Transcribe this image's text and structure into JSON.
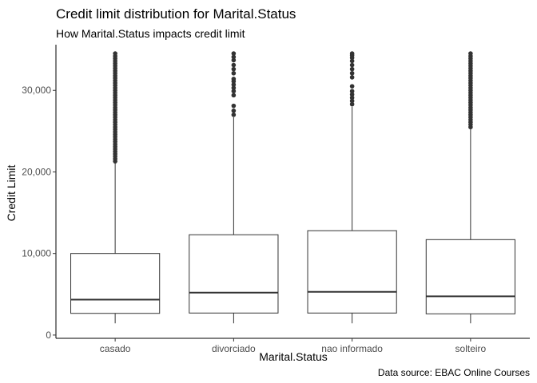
{
  "chart_data": {
    "type": "boxplot",
    "title": "Credit limit distribution for Marital.Status",
    "subtitle": "How Marital.Status impacts credit limit",
    "xlabel": "Marital.Status",
    "ylabel": "Credit Limit",
    "caption": "Data source: EBAC Online Courses",
    "ylim": [
      -400,
      35600
    ],
    "yticks": [
      0,
      10000,
      20000,
      30000
    ],
    "ytick_labels": [
      "0",
      "10,000",
      "20,000",
      "30,000"
    ],
    "grid": false,
    "legend": "none",
    "categories": [
      "casado",
      "divorciado",
      "nao informado",
      "solteiro"
    ],
    "boxes": [
      {
        "category": "casado",
        "min": 1438,
        "q1": 2660,
        "median": 4350,
        "q3": 10000,
        "whisker_high": 21100,
        "outliers": [
          21300,
          21600,
          21900,
          22200,
          22500,
          22800,
          23100,
          23400,
          23700,
          24000,
          24300,
          24600,
          24900,
          25200,
          25500,
          25800,
          26100,
          26400,
          26700,
          27000,
          27300,
          27600,
          27900,
          28200,
          28500,
          28800,
          29100,
          29400,
          29700,
          30000,
          30300,
          30600,
          30900,
          31200,
          31500,
          31800,
          32100,
          32400,
          32700,
          33000,
          33300,
          33600,
          33900,
          34200,
          34516
        ]
      },
      {
        "category": "divorciado",
        "min": 1438,
        "q1": 2700,
        "median": 5200,
        "q3": 12300,
        "whisker_high": 26700,
        "outliers": [
          27000,
          27500,
          28100,
          29400,
          29900,
          30300,
          30700,
          31100,
          31400,
          32100,
          32600,
          33100,
          33700,
          34100,
          34516
        ]
      },
      {
        "category": "nao informado",
        "min": 1438,
        "q1": 2700,
        "median": 5300,
        "q3": 12800,
        "whisker_high": 28000,
        "outliers": [
          28300,
          28700,
          29100,
          29500,
          29900,
          30500,
          31600,
          32100,
          32600,
          33100,
          33600,
          34000,
          34300,
          34516
        ]
      },
      {
        "category": "solteiro",
        "min": 1438,
        "q1": 2600,
        "median": 4750,
        "q3": 11700,
        "whisker_high": 25300,
        "outliers": [
          25500,
          25800,
          26100,
          26400,
          26700,
          27000,
          27300,
          27600,
          27900,
          28200,
          28500,
          28800,
          29100,
          29400,
          29700,
          30000,
          30300,
          30600,
          30900,
          31200,
          31500,
          31800,
          32100,
          32400,
          32700,
          33000,
          33300,
          33600,
          33900,
          34200,
          34516
        ]
      }
    ]
  }
}
